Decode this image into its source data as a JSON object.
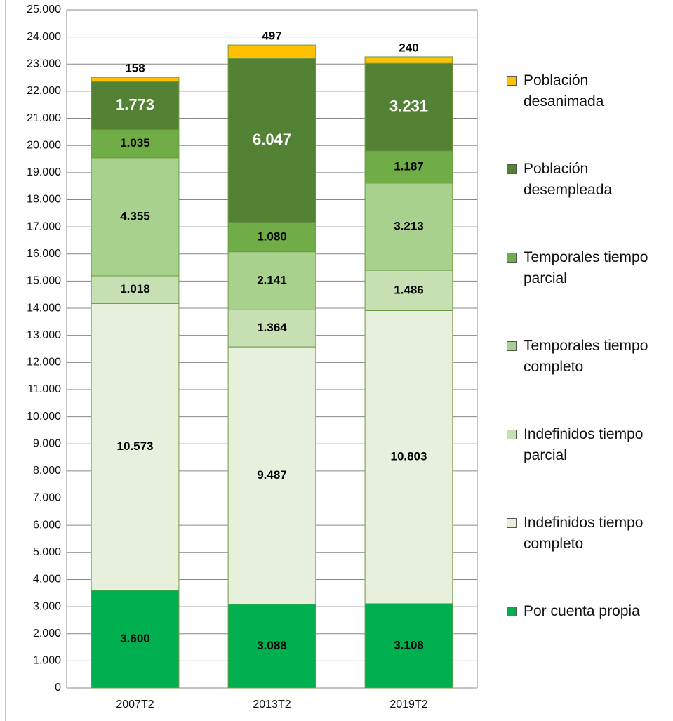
{
  "chart_data": {
    "type": "stacked_bar",
    "categories": [
      "2007T2",
      "2013T2",
      "2019T2"
    ],
    "series": [
      {
        "name": "Por cuenta propia",
        "color": "#00b050",
        "label_color": "#000000",
        "values": [
          3600,
          3088,
          3108
        ],
        "value_labels": [
          "3.600",
          "3.088",
          "3.108"
        ]
      },
      {
        "name": "Indefinidos tiempo completo",
        "color": "#e6f0dc",
        "label_color": "#000000",
        "values": [
          10573,
          9487,
          10803
        ],
        "value_labels": [
          "10.573",
          "9.487",
          "10.803"
        ]
      },
      {
        "name": "Indefinidos tiempo parcial",
        "color": "#c6e0b4",
        "label_color": "#000000",
        "values": [
          1018,
          1364,
          1486
        ],
        "value_labels": [
          "1.018",
          "1.364",
          "1.486"
        ]
      },
      {
        "name": "Temporales tiempo completo",
        "color": "#a9d18e",
        "label_color": "#000000",
        "values": [
          4355,
          2141,
          3213
        ],
        "value_labels": [
          "4.355",
          "2.141",
          "3.213"
        ]
      },
      {
        "name": "Temporales tiempo parcial",
        "color": "#70ad47",
        "label_color": "#000000",
        "values": [
          1035,
          1080,
          1187
        ],
        "value_labels": [
          "1.035",
          "1.080",
          "1.187"
        ]
      },
      {
        "name": "Población desempleada",
        "color": "#548235",
        "label_color": "#ffffff",
        "values": [
          1773,
          6047,
          3231
        ],
        "value_labels": [
          "1.773",
          "6.047",
          "3.231"
        ]
      },
      {
        "name": "Población desanimada",
        "color": "#ffc000",
        "label_color": "#000000",
        "values": [
          158,
          497,
          240
        ],
        "value_labels": [
          "158",
          "497",
          "240"
        ]
      }
    ],
    "ylim": [
      0,
      25000
    ],
    "yticks": [
      0,
      {
        "value": 1000,
        "label": "1.000"
      },
      {
        "value": 2000,
        "label": "2.000"
      },
      {
        "value": 3000,
        "label": "3.000"
      },
      {
        "value": 4000,
        "label": "4.000"
      },
      {
        "value": 5000,
        "label": "5.000"
      },
      {
        "value": 6000,
        "label": "6.000"
      },
      {
        "value": 7000,
        "label": "7.000"
      },
      {
        "value": 8000,
        "label": "8.000"
      },
      {
        "value": 9000,
        "label": "9.000"
      },
      {
        "value": 10000,
        "label": "10.000"
      },
      {
        "value": 11000,
        "label": "11.000"
      },
      {
        "value": 12000,
        "label": "12.000"
      },
      {
        "value": 13000,
        "label": "13.000"
      },
      {
        "value": 14000,
        "label": "14.000"
      },
      {
        "value": 15000,
        "label": "15.000"
      },
      {
        "value": 16000,
        "label": "16.000"
      },
      {
        "value": 17000,
        "label": "17.000"
      },
      {
        "value": 18000,
        "label": "18.000"
      },
      {
        "value": 19000,
        "label": "19.000"
      },
      {
        "value": 20000,
        "label": "20.000"
      },
      {
        "value": 21000,
        "label": "21.000"
      },
      {
        "value": 22000,
        "label": "22.000"
      },
      {
        "value": 23000,
        "label": "23.000"
      },
      {
        "value": 24000,
        "label": "24.000"
      },
      {
        "value": 25000,
        "label": "25.000"
      }
    ],
    "grid": true,
    "legend": "right"
  }
}
